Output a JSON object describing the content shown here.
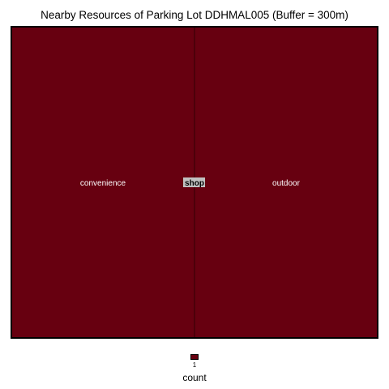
{
  "chart_data": {
    "type": "treemap",
    "title": "Nearby Resources of Parking Lot DDHMAL005 (Buffer = 300m)",
    "group": {
      "name": "shop",
      "value": 2
    },
    "leaves": [
      {
        "name": "convenience",
        "value": 1
      },
      {
        "name": "outdoor",
        "value": 1
      }
    ],
    "legend": {
      "title": "count",
      "ticks": [
        "1"
      ]
    },
    "colors": {
      "fill": "#670010",
      "border": "#000000",
      "group_border": "#3a0008",
      "label_bg": "#c0c0c0",
      "label_text": "#ffffff"
    }
  }
}
